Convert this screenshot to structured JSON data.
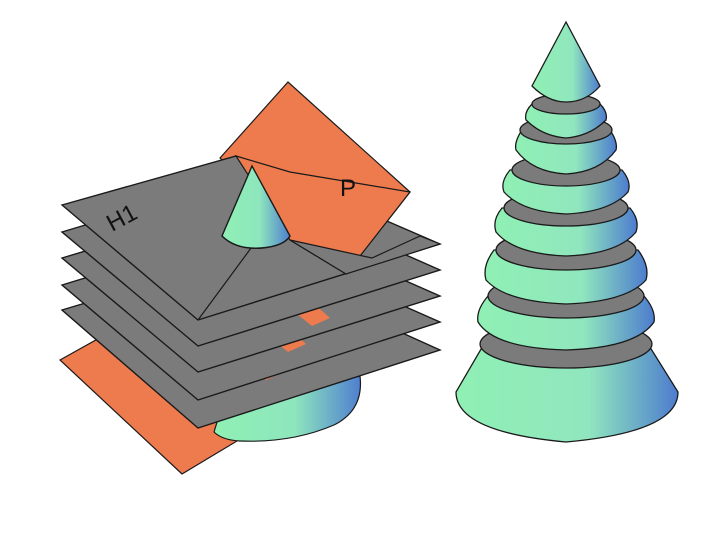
{
  "labels": {
    "plane_p": "P",
    "plane_h1": "H1"
  },
  "colors": {
    "plane_p": "#ee7b4e",
    "horizontal_plane": "#7b7b7b",
    "cone_light": "#8ff0b4",
    "cone_dark": "#4f7fd0",
    "outline": "#1a1a1a",
    "background": "#ffffff"
  }
}
